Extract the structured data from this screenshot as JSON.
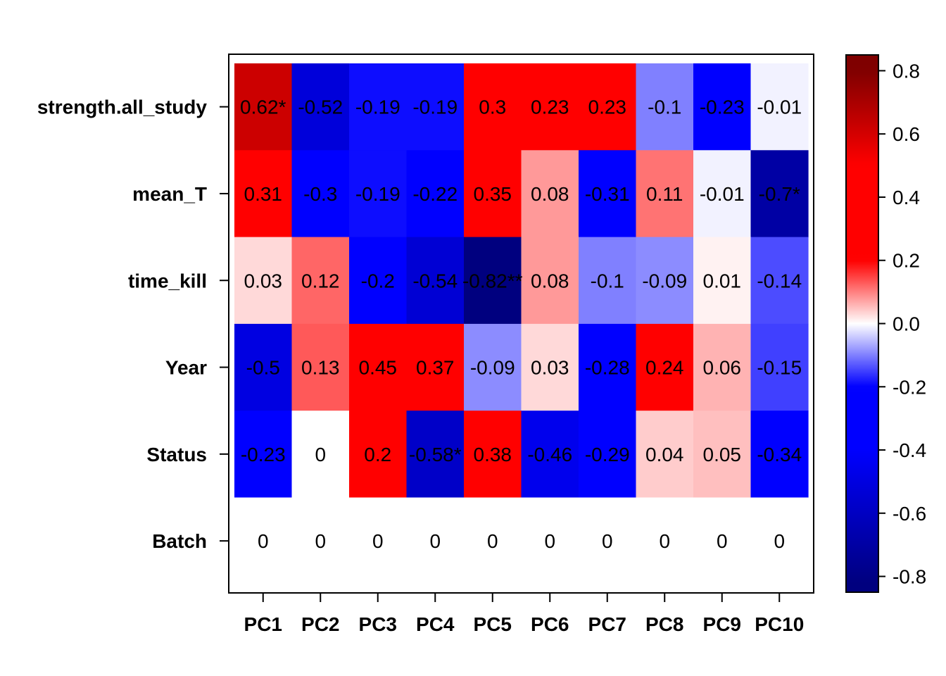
{
  "chart_data": {
    "type": "heatmap",
    "title": "",
    "xlabel": "",
    "ylabel": "",
    "columns": [
      "PC1",
      "PC2",
      "PC3",
      "PC4",
      "PC5",
      "PC6",
      "PC7",
      "PC8",
      "PC9",
      "PC10"
    ],
    "rows": [
      "strength.all_study",
      "mean_T",
      "time_kill",
      "Year",
      "Status",
      "Batch"
    ],
    "values": [
      [
        0.62,
        -0.52,
        -0.19,
        -0.19,
        0.3,
        0.23,
        0.23,
        -0.1,
        -0.23,
        -0.01
      ],
      [
        0.31,
        -0.3,
        -0.19,
        -0.22,
        0.35,
        0.08,
        -0.31,
        0.11,
        -0.01,
        -0.7
      ],
      [
        0.03,
        0.12,
        -0.2,
        -0.54,
        -0.82,
        0.08,
        -0.1,
        -0.09,
        0.01,
        -0.14
      ],
      [
        -0.5,
        0.13,
        0.45,
        0.37,
        -0.09,
        0.03,
        -0.28,
        0.24,
        0.06,
        -0.15
      ],
      [
        -0.23,
        0,
        0.2,
        -0.58,
        0.38,
        -0.46,
        -0.29,
        0.04,
        0.05,
        -0.34
      ],
      [
        0,
        0,
        0,
        0,
        0,
        0,
        0,
        0,
        0,
        0
      ]
    ],
    "labels": [
      [
        "0.62*",
        "-0.52",
        "-0.19",
        "-0.19",
        "0.3",
        "0.23",
        "0.23",
        "-0.1",
        "-0.23",
        "-0.01"
      ],
      [
        "0.31",
        "-0.3",
        "-0.19",
        "-0.22",
        "0.35",
        "0.08",
        "-0.31",
        "0.11",
        "-0.01",
        "-0.7*"
      ],
      [
        "0.03",
        "0.12",
        "-0.2",
        "-0.54",
        "-0.82**",
        "0.08",
        "-0.1",
        "-0.09",
        "0.01",
        "-0.14"
      ],
      [
        "-0.5",
        "0.13",
        "0.45",
        "0.37",
        "-0.09",
        "0.03",
        "-0.28",
        "0.24",
        "0.06",
        "-0.15"
      ],
      [
        "-0.23",
        "0",
        "0.2",
        "-0.58*",
        "0.38",
        "-0.46",
        "-0.29",
        "0.04",
        "0.05",
        "-0.34"
      ],
      [
        "0",
        "0",
        "0",
        "0",
        "0",
        "0",
        "0",
        "0",
        "0",
        "0"
      ]
    ],
    "colorbar": {
      "range": [
        -0.85,
        0.85
      ],
      "ticks": [
        {
          "value": 0.8,
          "label": "0.8"
        },
        {
          "value": 0.6,
          "label": "0.6"
        },
        {
          "value": 0.4,
          "label": "0.4"
        },
        {
          "value": 0.2,
          "label": "0.2"
        },
        {
          "value": 0.0,
          "label": "0.0"
        },
        {
          "value": -0.2,
          "label": "-0.2"
        },
        {
          "value": -0.4,
          "label": "-0.4"
        },
        {
          "value": -0.6,
          "label": "-0.6"
        },
        {
          "value": -0.8,
          "label": "-0.8"
        }
      ]
    },
    "colors": {
      "negative_max": "#00007f",
      "negative_mid": "#0000ff",
      "zero": "#ffffff",
      "positive_mid": "#ff0000",
      "positive_max": "#7f0000"
    },
    "grid": false,
    "legend": "right"
  }
}
